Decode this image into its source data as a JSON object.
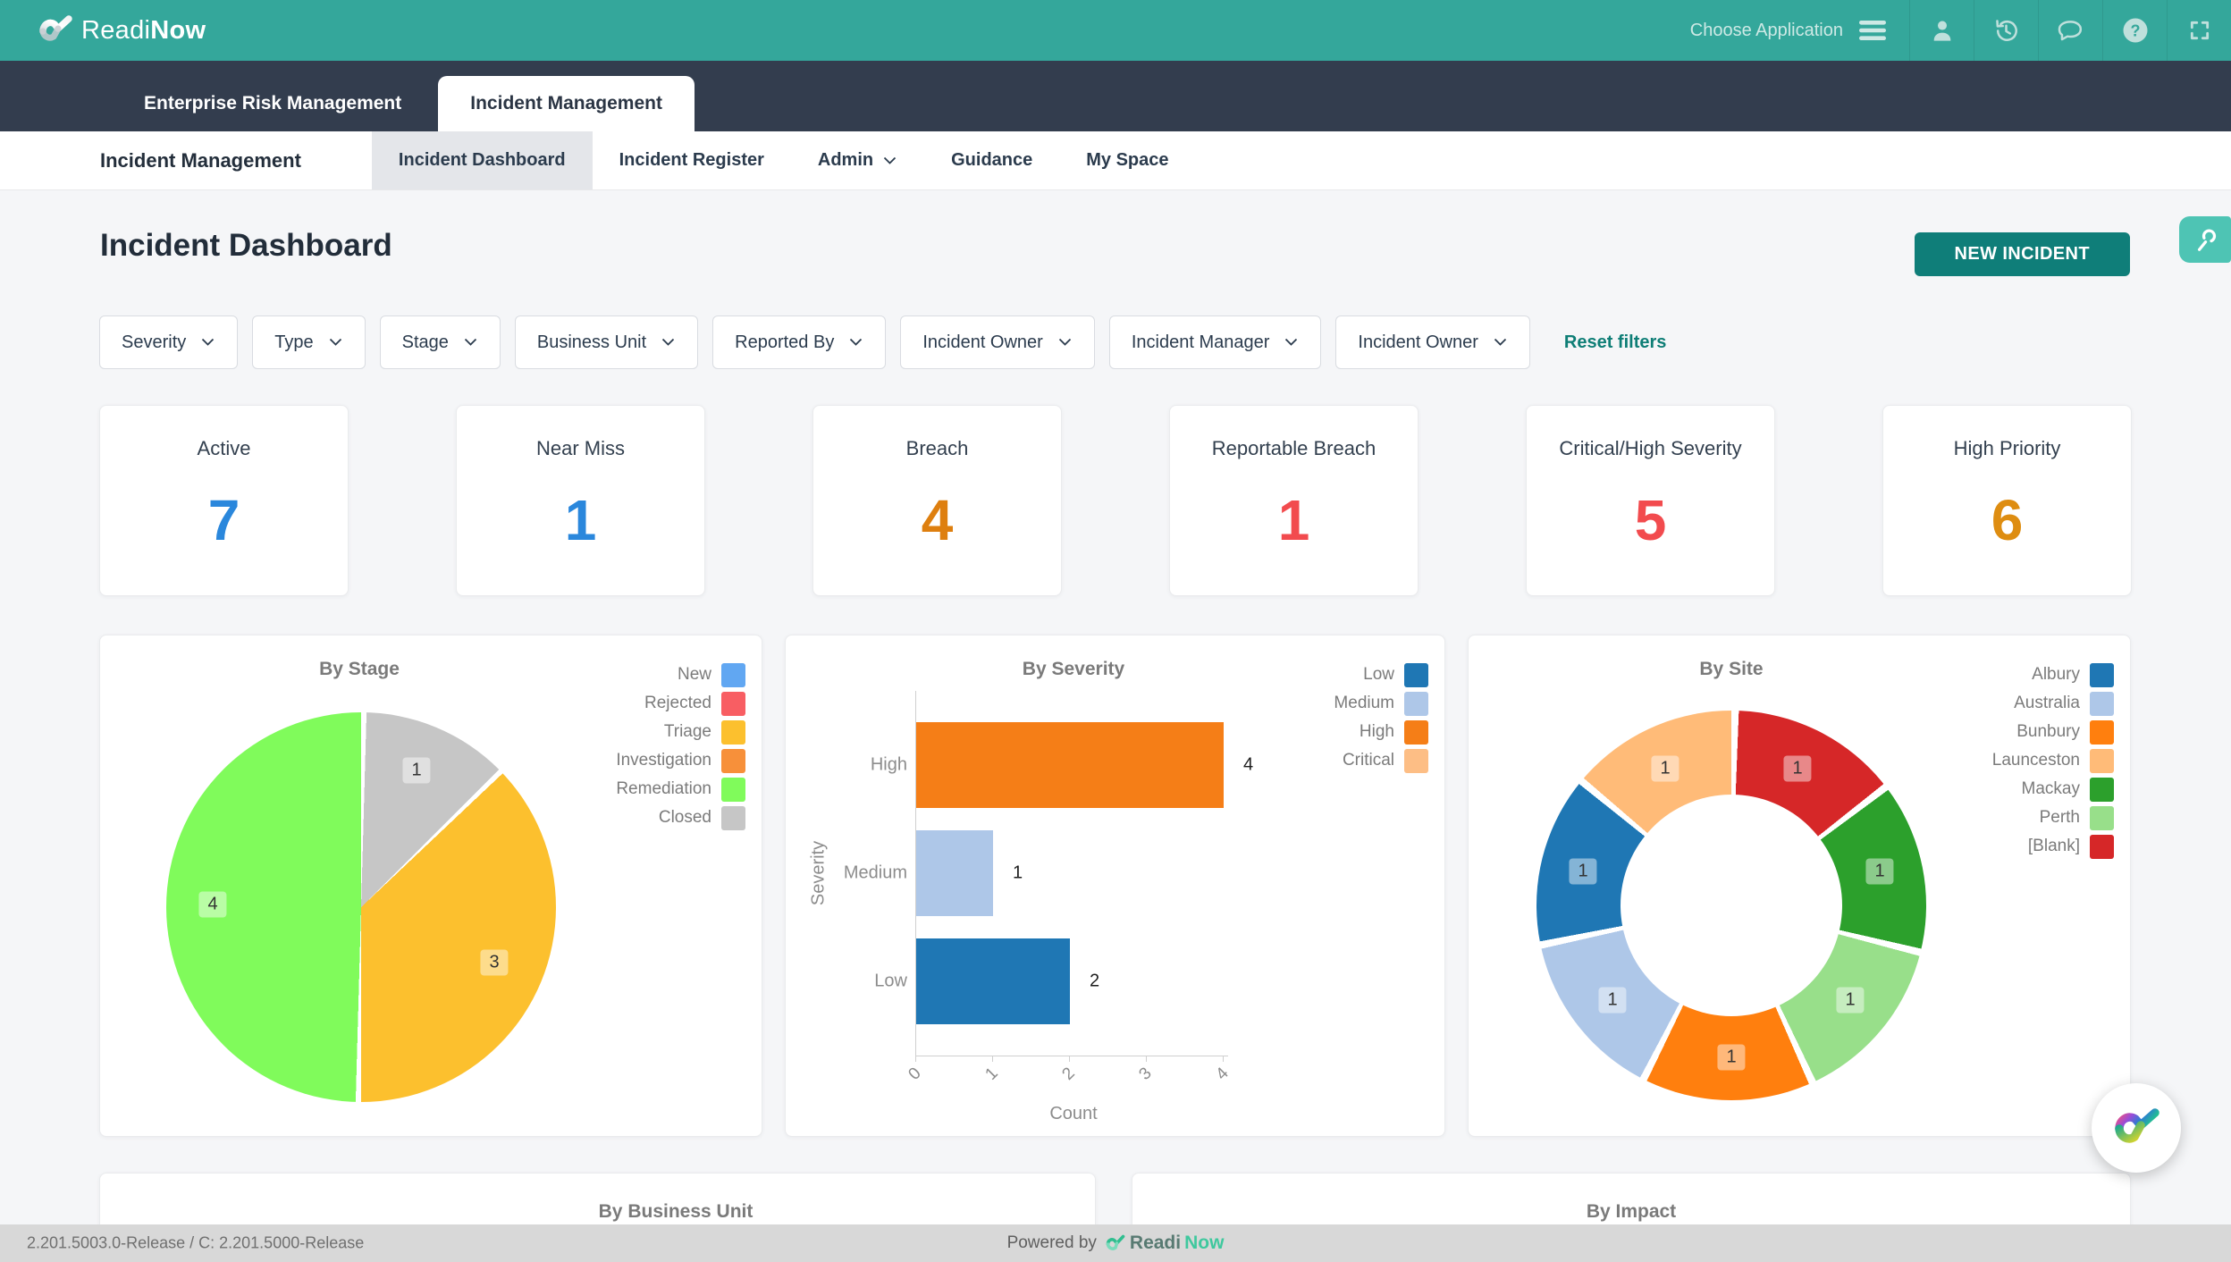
{
  "topbar": {
    "brand_prefix": "Readi",
    "brand_suffix": "Now",
    "choose_application": "Choose Application",
    "icons": [
      "menu-icon",
      "user-icon",
      "history-icon",
      "chat-icon",
      "help-icon",
      "fullscreen-icon"
    ],
    "bar_color": "#34A79B"
  },
  "app_tabs": [
    {
      "label": "Enterprise Risk Management",
      "active": false
    },
    {
      "label": "Incident Management",
      "active": true
    }
  ],
  "nav": {
    "section_title": "Incident Management",
    "items": [
      {
        "label": "Incident Dashboard",
        "active": true
      },
      {
        "label": "Incident Register",
        "active": false
      },
      {
        "label": "Admin",
        "active": false,
        "has_dropdown": true
      },
      {
        "label": "Guidance",
        "active": false
      },
      {
        "label": "My Space",
        "active": false
      }
    ]
  },
  "page": {
    "title": "Incident Dashboard",
    "new_incident_button": "NEW INCIDENT",
    "reset_filters": "Reset filters",
    "accent_color": "#0F7E79"
  },
  "filters": [
    "Severity",
    "Type",
    "Stage",
    "Business Unit",
    "Reported By",
    "Incident Owner",
    "Incident Manager",
    "Incident Owner"
  ],
  "kpis": [
    {
      "label": "Active",
      "value": "7",
      "color": "#2A87DC"
    },
    {
      "label": "Near Miss",
      "value": "1",
      "color": "#2A87DC"
    },
    {
      "label": "Breach",
      "value": "4",
      "color": "#DE7F0F"
    },
    {
      "label": "Reportable Breach",
      "value": "1",
      "color": "#F24B4E"
    },
    {
      "label": "Critical/High Severity",
      "value": "5",
      "color": "#F24B4E"
    },
    {
      "label": "High Priority",
      "value": "6",
      "color": "#DE8D11"
    }
  ],
  "chart_data": [
    {
      "type": "pie",
      "title": "By Stage",
      "legend_position": "top-right",
      "legend": [
        {
          "label": "New",
          "color": "#61A7F2"
        },
        {
          "label": "Rejected",
          "color": "#F85E63"
        },
        {
          "label": "Triage",
          "color": "#FCC02E"
        },
        {
          "label": "Investigation",
          "color": "#F7903A"
        },
        {
          "label": "Remediation",
          "color": "#80FB5B"
        },
        {
          "label": "Closed",
          "color": "#C6C6C6"
        }
      ],
      "slices": [
        {
          "label": "Closed",
          "value": 1,
          "color": "#C6C6C6"
        },
        {
          "label": "Triage",
          "value": 3,
          "color": "#FCC02E"
        },
        {
          "label": "Remediation",
          "value": 4,
          "color": "#80FB5B"
        }
      ],
      "start_angle_deg": 0,
      "direction": "clockwise"
    },
    {
      "type": "bar",
      "title": "By Severity",
      "orientation": "horizontal",
      "xlabel": "Count",
      "ylabel": "Severity",
      "x_ticks": [
        "0",
        "1",
        "2",
        "3",
        "4"
      ],
      "x_max": 4,
      "legend_position": "top-right",
      "legend": [
        {
          "label": "Low",
          "color": "#1F77B4"
        },
        {
          "label": "Medium",
          "color": "#AEC7E8"
        },
        {
          "label": "High",
          "color": "#F57E17"
        },
        {
          "label": "Critical",
          "color": "#FDBE85"
        }
      ],
      "bars": [
        {
          "label": "High",
          "value": 4,
          "color": "#F57E17"
        },
        {
          "label": "Medium",
          "value": 1,
          "color": "#AEC7E8"
        },
        {
          "label": "Low",
          "value": 2,
          "color": "#1F77B4"
        }
      ]
    },
    {
      "type": "pie",
      "subtype": "donut",
      "title": "By Site",
      "legend_position": "top-right",
      "legend": [
        {
          "label": "Albury",
          "color": "#1F77B4"
        },
        {
          "label": "Australia",
          "color": "#AEC7E8"
        },
        {
          "label": "Bunbury",
          "color": "#FF7F0E"
        },
        {
          "label": "Launceston",
          "color": "#FFBB78"
        },
        {
          "label": "Mackay",
          "color": "#2CA02C"
        },
        {
          "label": "Perth",
          "color": "#98DF8A"
        },
        {
          "label": "[Blank]",
          "color": "#D62728"
        }
      ],
      "slices": [
        {
          "label": "[Blank]",
          "value": 1,
          "color": "#D62728"
        },
        {
          "label": "Mackay",
          "value": 1,
          "color": "#2CA02C"
        },
        {
          "label": "Perth",
          "value": 1,
          "color": "#98DF8A"
        },
        {
          "label": "Bunbury",
          "value": 1,
          "color": "#FF7F0E"
        },
        {
          "label": "Australia",
          "value": 1,
          "color": "#AEC7E8"
        },
        {
          "label": "Albury",
          "value": 1,
          "color": "#1F77B4"
        },
        {
          "label": "Launceston",
          "value": 1,
          "color": "#FFBB78"
        }
      ],
      "start_angle_deg": 0,
      "direction": "clockwise"
    }
  ],
  "bottom_cards": [
    {
      "title": "By Business Unit"
    },
    {
      "title": "By Impact"
    }
  ],
  "footer": {
    "version": "2.201.5003.0-Release / C: 2.201.5000-Release",
    "powered_by": "Powered by",
    "brand_prefix": "Readi",
    "brand_suffix": "Now"
  }
}
